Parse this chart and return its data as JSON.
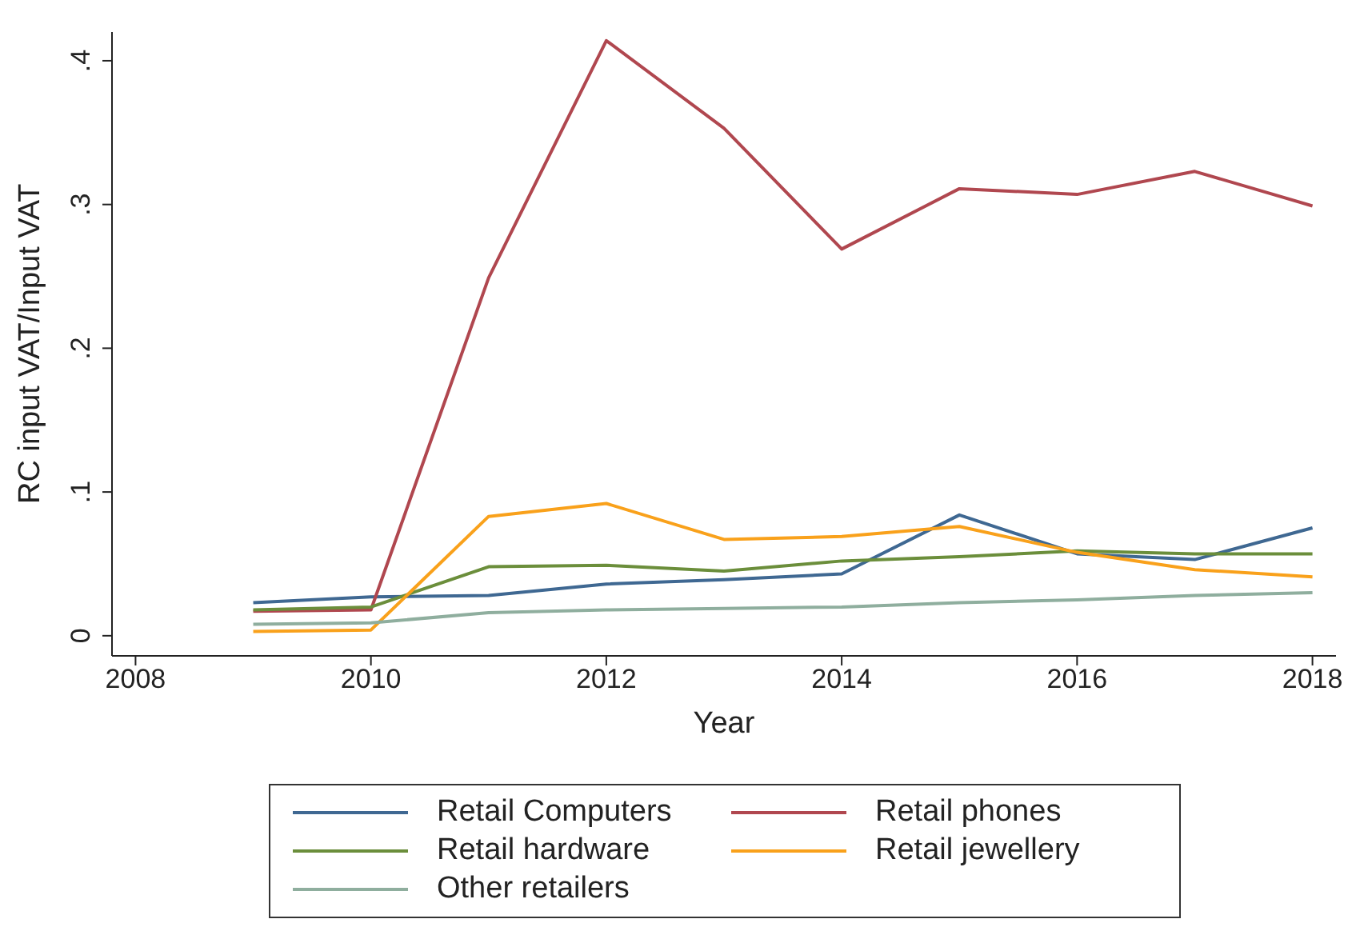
{
  "chart_data": {
    "type": "line",
    "xlabel": "Year",
    "ylabel": "RC input VAT/Input VAT",
    "x": [
      2009,
      2010,
      2011,
      2012,
      2013,
      2014,
      2015,
      2016,
      2017,
      2018
    ],
    "series": [
      {
        "name": "Retail Computers",
        "color": "#3f6892",
        "values": [
          0.023,
          0.027,
          0.028,
          0.036,
          0.039,
          0.043,
          0.084,
          0.057,
          0.053,
          0.075
        ]
      },
      {
        "name": "Retail phones",
        "color": "#b0474f",
        "values": [
          0.017,
          0.018,
          0.249,
          0.414,
          0.353,
          0.269,
          0.311,
          0.307,
          0.323,
          0.299
        ]
      },
      {
        "name": "Retail hardware",
        "color": "#6b8e3b",
        "values": [
          0.018,
          0.02,
          0.048,
          0.049,
          0.045,
          0.052,
          0.055,
          0.059,
          0.057,
          0.057
        ]
      },
      {
        "name": "Retail jewellery",
        "color": "#f9a11b",
        "values": [
          0.003,
          0.004,
          0.083,
          0.092,
          0.067,
          0.069,
          0.076,
          0.058,
          0.046,
          0.041
        ]
      },
      {
        "name": "Other retailers",
        "color": "#8fae9e",
        "values": [
          0.008,
          0.009,
          0.016,
          0.018,
          0.019,
          0.02,
          0.023,
          0.025,
          0.028,
          0.03
        ]
      }
    ],
    "xlim": [
      2007.8,
      2018.2
    ],
    "xticks": [
      2008,
      2010,
      2012,
      2014,
      2016,
      2018
    ],
    "ylim": [
      -0.014,
      0.42
    ],
    "yticks": [
      {
        "value": 0,
        "label": "0"
      },
      {
        "value": 0.1,
        "label": ".1"
      },
      {
        "value": 0.2,
        "label": ".2"
      },
      {
        "value": 0.3,
        "label": ".3"
      },
      {
        "value": 0.4,
        "label": ".4"
      }
    ],
    "grid": false,
    "legend": "bottom",
    "marker": "none",
    "line_style": "solid"
  }
}
